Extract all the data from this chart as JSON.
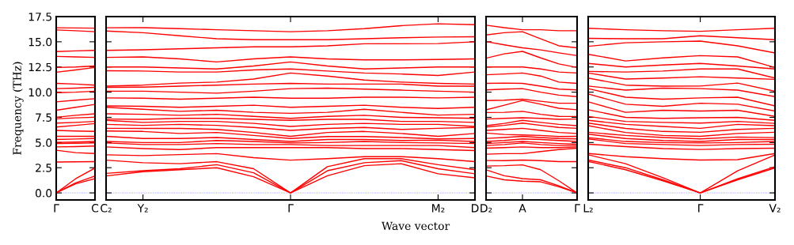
{
  "chart_data": [
    {
      "type": "line",
      "color": "#ff0000",
      "ylabel": "Frequency (THz)",
      "ylim": [
        -0.7,
        17.5
      ],
      "yticks": [
        {
          "value": 0,
          "label": "0.0"
        },
        {
          "value": 2.5,
          "label": "2.5"
        },
        {
          "value": 5,
          "label": "5.0"
        },
        {
          "value": 7.5,
          "label": "7.5"
        },
        {
          "value": 10,
          "label": "10.0"
        },
        {
          "value": 12.5,
          "label": "12.5"
        },
        {
          "value": 15,
          "label": "15.0"
        },
        {
          "value": 17.5,
          "label": "17.5"
        }
      ],
      "categories": [
        "Γ",
        null,
        "C"
      ],
      "ref_lines": [
        {
          "axis": "y",
          "value": 0,
          "label": null,
          "color": "#7070ff",
          "line_style": "dotted"
        }
      ],
      "series": [
        {
          "values": [
            0,
            0.9,
            1.42
          ]
        },
        {
          "values": [
            0,
            1.0,
            1.68
          ]
        },
        {
          "values": [
            0,
            1.4,
            2.47
          ]
        },
        {
          "values": [
            3.07,
            3.08,
            3.1
          ]
        },
        {
          "values": [
            4.23,
            4.0,
            3.91
          ]
        },
        {
          "values": [
            4.57,
            4.6,
            4.65
          ]
        },
        {
          "values": [
            4.91,
            4.93,
            4.96
          ]
        },
        {
          "values": [
            5.02,
            5.05,
            5.1
          ]
        },
        {
          "values": [
            5.3,
            5.35,
            5.4
          ]
        },
        {
          "values": [
            5.62,
            5.62,
            5.62
          ]
        },
        {
          "values": [
            6.2,
            6.15,
            6.1
          ]
        },
        {
          "values": [
            6.54,
            6.7,
            6.88
          ]
        },
        {
          "values": [
            6.93,
            7.0,
            7.1
          ]
        },
        {
          "values": [
            7.35,
            7.45,
            7.51
          ]
        },
        {
          "values": [
            7.51,
            7.7,
            7.85
          ]
        },
        {
          "values": [
            8.2,
            8.5,
            8.78
          ]
        },
        {
          "values": [
            9.04,
            9.2,
            9.35
          ]
        },
        {
          "values": [
            9.95,
            10.0,
            10.1
          ]
        },
        {
          "values": [
            10.35,
            10.4,
            10.48
          ]
        },
        {
          "values": [
            10.87,
            10.8,
            10.7
          ]
        },
        {
          "values": [
            11.98,
            12.2,
            12.45
          ]
        },
        {
          "values": [
            12.45,
            12.5,
            12.6
          ]
        },
        {
          "values": [
            13.55,
            13.5,
            13.45
          ]
        },
        {
          "values": [
            14.03,
            14.1,
            14.15
          ]
        },
        {
          "values": [
            16.18,
            16.1,
            16.0
          ]
        },
        {
          "values": [
            16.39,
            16.37,
            16.35
          ]
        }
      ]
    },
    {
      "type": "line",
      "color": "#ff0000",
      "tick_labels": "x",
      "xlabel": "Wave vector",
      "ylim": [
        -0.7,
        17.5
      ],
      "yticks": [
        0,
        2.5,
        5,
        7.5,
        10,
        12.5,
        15,
        17.5
      ],
      "categories": [
        "C₂",
        "Y₂",
        null,
        null,
        null,
        "Γ",
        null,
        null,
        null,
        "M₂",
        "D"
      ],
      "ref_lines": [
        {
          "axis": "y",
          "value": 0,
          "label": null,
          "color": "#7070ff",
          "line_style": "dotted"
        }
      ],
      "series": [
        {
          "values": [
            1.68,
            2.1,
            2.3,
            2.5,
            1.6,
            0,
            1.7,
            2.7,
            2.9,
            1.9,
            1.5
          ]
        },
        {
          "values": [
            1.94,
            2.2,
            2.4,
            2.8,
            2.0,
            0,
            2.2,
            3.0,
            3.2,
            2.4,
            1.9
          ]
        },
        {
          "values": [
            3.25,
            3.0,
            2.9,
            3.1,
            2.4,
            0,
            2.6,
            3.4,
            3.4,
            2.8,
            2.3
          ]
        },
        {
          "values": [
            3.78,
            3.7,
            3.8,
            3.9,
            3.5,
            3.25,
            3.4,
            3.6,
            3.6,
            3.4,
            3.1
          ]
        },
        {
          "values": [
            4.57,
            4.4,
            4.3,
            4.5,
            4.5,
            4.5,
            4.5,
            4.4,
            4.4,
            4.3,
            4.2
          ]
        },
        {
          "values": [
            4.96,
            4.8,
            4.8,
            4.9,
            4.8,
            4.8,
            4.7,
            4.7,
            4.7,
            4.7,
            4.5
          ]
        },
        {
          "values": [
            5.1,
            5.0,
            5.0,
            5.2,
            5.1,
            4.96,
            5.0,
            5.1,
            5.0,
            4.96,
            4.9
          ]
        },
        {
          "values": [
            5.62,
            5.4,
            5.4,
            5.5,
            5.3,
            5.1,
            5.3,
            5.3,
            5.2,
            5.23,
            5.1
          ]
        },
        {
          "values": [
            6.15,
            6.1,
            5.9,
            6.0,
            5.7,
            5.4,
            5.6,
            5.6,
            5.5,
            5.36,
            5.4
          ]
        },
        {
          "values": [
            6.41,
            6.4,
            6.4,
            6.3,
            6.0,
            5.62,
            6.0,
            6.1,
            5.9,
            5.62,
            5.9
          ]
        },
        {
          "values": [
            6.8,
            6.7,
            6.8,
            6.7,
            6.5,
            6.2,
            6.4,
            6.5,
            6.3,
            6.41,
            6.5
          ]
        },
        {
          "values": [
            7.2,
            7.0,
            7.1,
            7.1,
            6.9,
            6.6,
            6.8,
            6.9,
            6.8,
            6.8,
            6.6
          ]
        },
        {
          "values": [
            7.33,
            7.3,
            7.4,
            7.4,
            7.3,
            7.2,
            7.3,
            7.3,
            7.1,
            7.1,
            7.0
          ]
        },
        {
          "values": [
            7.85,
            7.8,
            7.7,
            7.8,
            7.6,
            7.4,
            7.6,
            7.7,
            7.5,
            7.46,
            7.4
          ]
        },
        {
          "values": [
            8.5,
            8.3,
            8.1,
            8.2,
            8.0,
            7.9,
            8.0,
            8.3,
            8.0,
            7.72,
            7.8
          ]
        },
        {
          "values": [
            8.64,
            8.6,
            8.5,
            8.6,
            8.7,
            8.5,
            8.6,
            8.7,
            8.5,
            8.38,
            8.5
          ]
        },
        {
          "values": [
            9.43,
            9.4,
            9.3,
            9.4,
            9.5,
            9.4,
            9.4,
            9.5,
            9.5,
            9.43,
            9.5
          ]
        },
        {
          "values": [
            10.1,
            10.1,
            10.0,
            9.9,
            10.1,
            10.35,
            10.4,
            10.3,
            10.2,
            10.1,
            10.0
          ]
        },
        {
          "values": [
            10.48,
            10.5,
            10.6,
            10.7,
            10.8,
            10.87,
            10.8,
            10.8,
            10.8,
            10.6,
            10.6
          ]
        },
        {
          "values": [
            10.6,
            10.7,
            10.9,
            11.0,
            11.3,
            11.9,
            11.6,
            11.2,
            11.0,
            10.87,
            10.8
          ]
        },
        {
          "values": [
            12.13,
            12.1,
            12.0,
            12.0,
            12.2,
            12.3,
            12.1,
            11.9,
            11.8,
            11.66,
            12.0
          ]
        },
        {
          "values": [
            12.5,
            12.5,
            12.4,
            12.3,
            12.6,
            13.0,
            12.6,
            12.3,
            12.4,
            12.5,
            12.5
          ]
        },
        {
          "values": [
            13.45,
            13.5,
            13.3,
            13.0,
            13.3,
            13.5,
            13.3,
            13.2,
            13.2,
            13.24,
            13.3
          ]
        },
        {
          "values": [
            14.15,
            14.2,
            14.3,
            14.4,
            14.5,
            14.5,
            14.6,
            14.8,
            14.8,
            14.82,
            15.0
          ]
        },
        {
          "values": [
            16.07,
            15.9,
            15.6,
            15.3,
            15.2,
            15.2,
            15.2,
            15.3,
            15.4,
            15.47,
            15.5
          ]
        },
        {
          "values": [
            16.39,
            16.4,
            16.3,
            16.2,
            16.1,
            16.0,
            16.1,
            16.3,
            16.6,
            16.78,
            16.7
          ]
        }
      ]
    },
    {
      "type": "line",
      "color": "#ff0000",
      "tick_labels": "x",
      "ylim": [
        -0.7,
        17.5
      ],
      "yticks": [
        0,
        2.5,
        5,
        7.5,
        10,
        12.5,
        15,
        17.5
      ],
      "categories": [
        "D₂",
        null,
        "A",
        null,
        null,
        "Γ"
      ],
      "ref_lines": [
        {
          "axis": "y",
          "value": 0,
          "label": null,
          "color": "#7070ff",
          "line_style": "dotted"
        }
      ],
      "series": [
        {
          "values": [
            1.68,
            1.3,
            1.16,
            1.1,
            0.6,
            0
          ]
        },
        {
          "values": [
            2.29,
            1.7,
            1.42,
            1.3,
            0.7,
            0
          ]
        },
        {
          "values": [
            2.66,
            2.7,
            2.78,
            2.3,
            1.2,
            0
          ]
        },
        {
          "values": [
            3.21,
            3.2,
            3.26,
            3.2,
            3.1,
            3.1
          ]
        },
        {
          "values": [
            3.84,
            3.9,
            3.9,
            4.1,
            4.3,
            4.44
          ]
        },
        {
          "values": [
            4.44,
            4.5,
            4.57,
            4.5,
            4.5,
            4.57
          ]
        },
        {
          "values": [
            4.7,
            4.8,
            4.96,
            4.8,
            4.7,
            4.7
          ]
        },
        {
          "values": [
            4.9,
            5.0,
            5.1,
            5.0,
            4.9,
            4.83
          ]
        },
        {
          "values": [
            5.1,
            5.2,
            5.36,
            5.3,
            5.2,
            5.1
          ]
        },
        {
          "values": [
            5.41,
            5.5,
            5.62,
            5.5,
            5.4,
            5.36
          ]
        },
        {
          "values": [
            5.94,
            5.8,
            5.75,
            5.7,
            5.6,
            5.62
          ]
        },
        {
          "values": [
            6.2,
            6.3,
            6.41,
            6.2,
            6.0,
            5.9
          ]
        },
        {
          "values": [
            6.54,
            6.7,
            6.93,
            6.7,
            6.5,
            6.41
          ]
        },
        {
          "values": [
            6.67,
            6.9,
            7.2,
            7.0,
            6.8,
            6.67
          ]
        },
        {
          "values": [
            7.33,
            7.4,
            7.46,
            7.4,
            7.3,
            7.33
          ]
        },
        {
          "values": [
            7.98,
            8.0,
            8.1,
            7.8,
            7.6,
            7.59
          ]
        },
        {
          "values": [
            8.25,
            8.7,
            9.17,
            8.8,
            8.4,
            8.25
          ]
        },
        {
          "values": [
            9.17,
            9.2,
            9.3,
            9.1,
            8.9,
            8.9
          ]
        },
        {
          "values": [
            10.22,
            10.3,
            10.35,
            10.0,
            9.7,
            9.56
          ]
        },
        {
          "values": [
            10.87,
            10.9,
            10.87,
            10.6,
            10.3,
            10.22
          ]
        },
        {
          "values": [
            11.72,
            11.8,
            11.9,
            11.6,
            11.0,
            10.87
          ]
        },
        {
          "values": [
            12.5,
            12.5,
            12.5,
            12.3,
            12.0,
            11.9
          ]
        },
        {
          "values": [
            13.37,
            13.8,
            14.05,
            13.4,
            12.8,
            12.45
          ]
        },
        {
          "values": [
            15.02,
            14.7,
            14.4,
            14.2,
            13.9,
            13.63
          ]
        },
        {
          "values": [
            15.68,
            15.9,
            16.0,
            15.3,
            14.6,
            14.4
          ]
        },
        {
          "values": [
            16.65,
            16.4,
            16.2,
            16.2,
            16.1,
            16.1
          ]
        }
      ]
    },
    {
      "type": "line",
      "color": "#ff0000",
      "tick_labels": "x",
      "ylim": [
        -0.7,
        17.5
      ],
      "yticks": [
        0,
        2.5,
        5,
        7.5,
        10,
        12.5,
        15,
        17.5
      ],
      "categories": [
        "L₂",
        null,
        null,
        "Γ",
        null,
        "V₂"
      ],
      "ref_lines": [
        {
          "axis": "y",
          "value": 0,
          "label": null,
          "color": "#7070ff",
          "line_style": "dotted"
        }
      ],
      "series": [
        {
          "values": [
            3.13,
            2.3,
            1.2,
            0,
            1.3,
            2.47
          ]
        },
        {
          "values": [
            3.26,
            2.5,
            1.3,
            0,
            1.4,
            2.6
          ]
        },
        {
          "values": [
            3.78,
            2.9,
            1.5,
            0,
            2.2,
            3.78
          ]
        },
        {
          "values": [
            3.91,
            3.6,
            3.4,
            3.26,
            3.3,
            3.91
          ]
        },
        {
          "values": [
            4.83,
            4.6,
            4.4,
            4.31,
            4.4,
            4.44
          ]
        },
        {
          "values": [
            5.36,
            4.9,
            4.8,
            4.7,
            4.8,
            4.83
          ]
        },
        {
          "values": [
            5.49,
            5.1,
            5.0,
            4.96,
            5.0,
            5.1
          ]
        },
        {
          "values": [
            5.83,
            5.4,
            5.2,
            5.1,
            5.3,
            5.3
          ]
        },
        {
          "values": [
            6.02,
            5.7,
            5.5,
            5.36,
            5.55,
            5.49
          ]
        },
        {
          "values": [
            6.67,
            6.0,
            5.7,
            5.62,
            5.9,
            6.02
          ]
        },
        {
          "values": [
            6.93,
            6.4,
            6.1,
            6.02,
            6.3,
            6.41
          ]
        },
        {
          "values": [
            7.2,
            6.8,
            6.6,
            6.41,
            6.8,
            6.67
          ]
        },
        {
          "values": [
            7.59,
            7.1,
            7.0,
            6.93,
            7.1,
            6.9
          ]
        },
        {
          "values": [
            8.25,
            7.5,
            7.4,
            7.46,
            7.5,
            7.2
          ]
        },
        {
          "values": [
            9.04,
            8.0,
            8.2,
            8.12,
            8.2,
            7.59
          ]
        },
        {
          "values": [
            9.82,
            8.8,
            8.6,
            8.9,
            8.8,
            8.12
          ]
        },
        {
          "values": [
            10.35,
            9.5,
            9.3,
            9.43,
            9.5,
            8.64
          ]
        },
        {
          "values": [
            10.61,
            10.2,
            10.4,
            10.35,
            10.2,
            9.56
          ]
        },
        {
          "values": [
            11.4,
            10.7,
            10.6,
            10.61,
            10.9,
            10.09
          ]
        },
        {
          "values": [
            11.9,
            11.3,
            11.4,
            11.53,
            11.4,
            11.27
          ]
        },
        {
          "values": [
            12.06,
            12.0,
            12.1,
            12.3,
            12.3,
            11.4
          ]
        },
        {
          "values": [
            12.85,
            12.5,
            12.7,
            12.85,
            12.6,
            12.3
          ]
        },
        {
          "values": [
            13.76,
            13.1,
            13.4,
            13.63,
            13.5,
            12.45
          ]
        },
        {
          "values": [
            14.55,
            14.9,
            15.0,
            15.07,
            14.6,
            13.89
          ]
        },
        {
          "values": [
            15.34,
            15.3,
            15.3,
            15.6,
            15.4,
            15.2
          ]
        },
        {
          "values": [
            16.34,
            16.2,
            16.1,
            16.04,
            16.2,
            16.34
          ]
        }
      ]
    }
  ]
}
